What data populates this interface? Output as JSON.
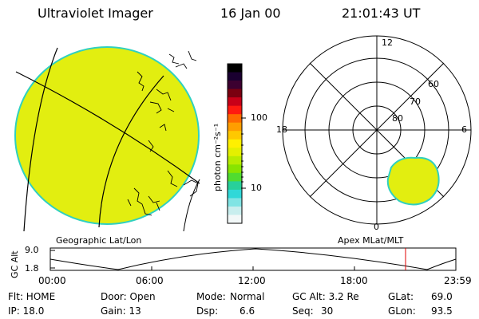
{
  "header": {
    "instrument": "Ultraviolet Imager",
    "date": "16 Jan 00",
    "time": "21:01:43 UT"
  },
  "colorbar": {
    "unit_label": "photon cm⁻²s⁻¹",
    "ticks": [
      "100",
      "10"
    ],
    "colors": [
      "#000000",
      "#1a0030",
      "#3c0030",
      "#7a0010",
      "#c80018",
      "#ff1a10",
      "#ff6a00",
      "#ff9e00",
      "#ffc800",
      "#fff000",
      "#e4f000",
      "#b8ec00",
      "#88e400",
      "#50dc30",
      "#28d09a",
      "#30d8d8",
      "#80e4e4",
      "#c8eeee",
      "#f2f8f8"
    ]
  },
  "image_panel": {
    "caption": "Geographic Lat/Lon",
    "fill_color": "#e2ee10",
    "rim_color": "#30d0c0"
  },
  "polar_panel": {
    "caption": "Apex MLat/MLT",
    "mlt_labels": {
      "top": "12",
      "left": "18",
      "right": "6",
      "bottom": "0"
    },
    "lat_labels": [
      "60",
      "70",
      "80"
    ]
  },
  "altitude_plot": {
    "ylabel": "GC Alt",
    "yticks": [
      "9.0",
      "1.8"
    ],
    "xticks": [
      "00:00",
      "06:00",
      "12:00",
      "18:00",
      "23:59"
    ],
    "marker_color": "#e00000"
  },
  "status": {
    "col1": [
      "Flt: HOME",
      "IP: 18.0"
    ],
    "col2": [
      "Door: Open",
      "Gain: 13"
    ],
    "col3_label": [
      "Mode:",
      "Dsp:"
    ],
    "col3_value": [
      "Normal",
      "6.6"
    ],
    "col4_label": [
      "GC Alt: 3.2 Re",
      "Seq:"
    ],
    "col4_value": [
      "",
      "30"
    ],
    "col5_label": [
      "GLat:",
      "GLon:"
    ],
    "col5_value": [
      "69.0",
      "93.5"
    ]
  }
}
